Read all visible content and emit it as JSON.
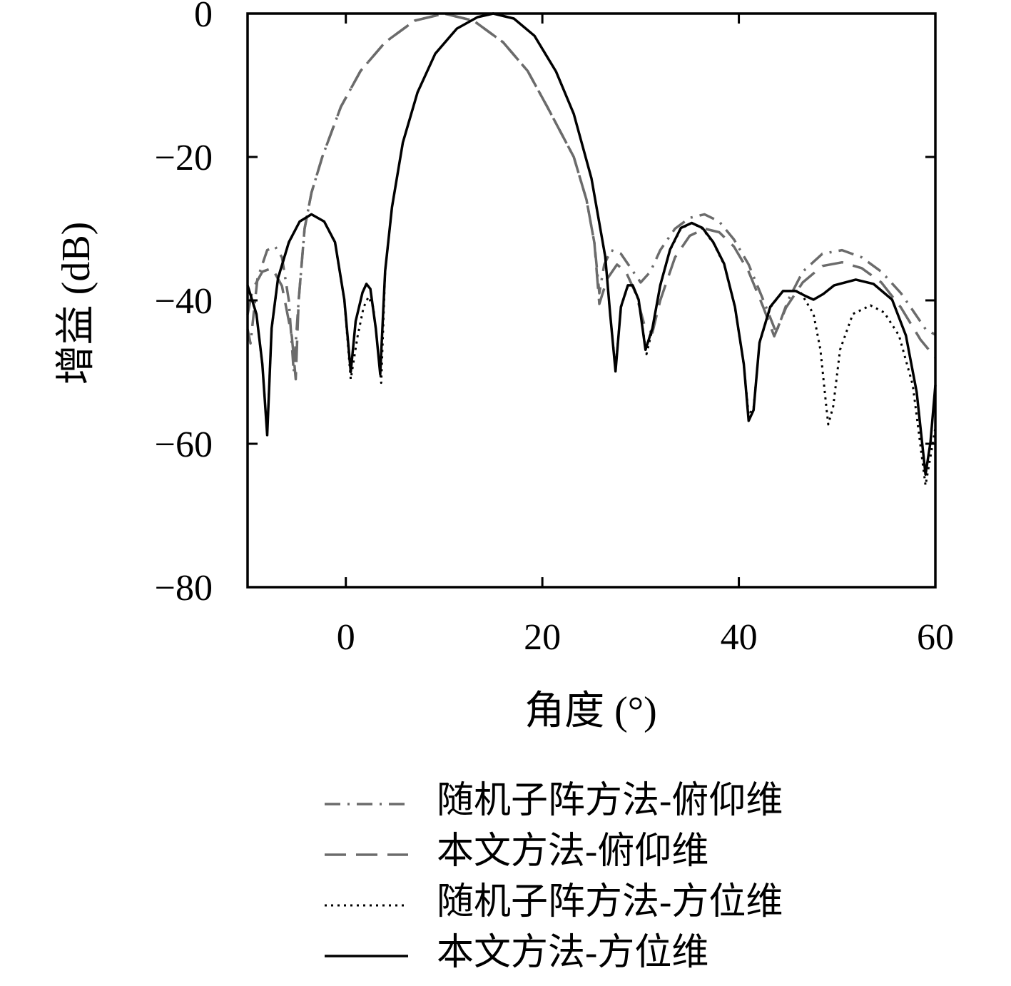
{
  "chart_data": {
    "type": "line",
    "x_label": "角度 (°)",
    "y_label": "增益 (dB)",
    "xlim": [
      -10,
      60
    ],
    "ylim": [
      -80,
      0
    ],
    "xticks": [
      0,
      20,
      40,
      60
    ],
    "yticks": [
      {
        "value": -80,
        "label": "−80"
      },
      {
        "value": -60,
        "label": "−60"
      },
      {
        "value": -40,
        "label": "−40"
      },
      {
        "value": -20,
        "label": "−20"
      },
      0
    ],
    "grid": false,
    "legend": "bottom",
    "series": [
      {
        "name": "随机子阵方法-俯仰维",
        "color": "#6b6b6b",
        "dash": "dashdot",
        "x": [
          -10,
          -9.7,
          -9,
          -8,
          -7.2,
          -6.5,
          -5.8,
          -5.3,
          -4.8,
          -4.2,
          -3.5,
          -2.4,
          -0.5,
          1.5,
          4,
          7,
          10,
          13,
          16,
          18.5,
          20.5,
          23.2,
          24.5,
          25.3,
          25.8,
          26.3,
          27,
          28,
          29,
          30,
          31,
          32,
          33.5,
          35,
          36.5,
          38,
          39.5,
          41,
          42.5,
          43.8,
          45,
          46.5,
          48.5,
          50.5,
          52.5,
          54.5,
          56.5,
          58,
          59,
          60
        ],
        "values": [
          -44,
          -46,
          -37,
          -33,
          -32.5,
          -34,
          -40,
          -50,
          -40,
          -30,
          -25,
          -20,
          -13,
          -8,
          -4,
          -1,
          0,
          -1,
          -4,
          -8,
          -13,
          -20,
          -26,
          -32,
          -39,
          -35,
          -33,
          -33.5,
          -35.5,
          -37.5,
          -36,
          -33,
          -30,
          -28.5,
          -28,
          -29,
          -31.5,
          -35,
          -40,
          -44.5,
          -40,
          -36,
          -33.5,
          -33,
          -34,
          -36,
          -39,
          -42,
          -44,
          -44.8
        ]
      },
      {
        "name": "本文方法-俯仰维",
        "color": "#6b6b6b",
        "dash": "dashed",
        "x": [
          -10,
          -9.5,
          -8.5,
          -7.5,
          -6.5,
          -5.5,
          -5.1,
          -4.8,
          -4.2,
          -3.5,
          -2.4,
          -0.5,
          1.5,
          4,
          7,
          10,
          13,
          16,
          18.5,
          20.5,
          23.2,
          24.5,
          25.3,
          25.8,
          26.6,
          27.6,
          28.5,
          29.5,
          30.5,
          31.2,
          32,
          33.5,
          35,
          36.5,
          38,
          39.5,
          41,
          42.5,
          43.6,
          44.8,
          46.5,
          48.5,
          50.5,
          52.5,
          54.5,
          56.5,
          58.5,
          60
        ],
        "values": [
          -42,
          -38.5,
          -36,
          -35.5,
          -38,
          -45,
          -51,
          -40,
          -30,
          -25,
          -20,
          -13,
          -8,
          -4,
          -1,
          0,
          -1,
          -4,
          -8,
          -13,
          -20,
          -26,
          -32,
          -40.5,
          -37,
          -35,
          -36,
          -39,
          -44,
          -44.5,
          -40,
          -34,
          -31,
          -30,
          -30.5,
          -32.5,
          -36,
          -41,
          -45,
          -41,
          -37.5,
          -35.2,
          -34.7,
          -35.5,
          -37.5,
          -41,
          -45.5,
          -48
        ]
      },
      {
        "name": "随机子阵方法-方位维",
        "color": "#000000",
        "dash": "dotted",
        "x": [
          -10,
          -9.1,
          -8.5,
          -8,
          -7.55,
          -6.9,
          -5.8,
          -4.7,
          -3.5,
          -2.2,
          -1.1,
          -0.15,
          0.5,
          1.2,
          1.8,
          2.3,
          2.8,
          3.2,
          3.6,
          4.0,
          4.7,
          5.8,
          7.3,
          9.1,
          11.3,
          13.4,
          15,
          17.1,
          19.2,
          21.4,
          23.2,
          25,
          26.4,
          26.9,
          27.45,
          28,
          28.7,
          29.2,
          29.8,
          30.6,
          31.2,
          32,
          33,
          34.1,
          35.2,
          36.3,
          37.4,
          38.5,
          39.6,
          40.5,
          41,
          41.5,
          42.1,
          43.2,
          44.5,
          46.2,
          47.6,
          48.3,
          48.9,
          49.1,
          49.6,
          50.3,
          51.6,
          53.4,
          54.8,
          56.3,
          57.7,
          59,
          60
        ],
        "values": [
          -38,
          -42,
          -49,
          -58.5,
          -44,
          -37,
          -32,
          -29,
          -28,
          -29,
          -32,
          -40,
          -51,
          -45,
          -41,
          -39.5,
          -41,
          -46,
          -51.5,
          -36,
          -27,
          -18,
          -11,
          -5.6,
          -2.1,
          -0.5,
          0,
          -0.7,
          -3.1,
          -8.1,
          -14,
          -23,
          -34,
          -42,
          -49.5,
          -41,
          -38,
          -38,
          -40,
          -47.5,
          -44,
          -38,
          -33,
          -30,
          -29.2,
          -30,
          -32,
          -35,
          -41,
          -49,
          -56,
          -55,
          -46,
          -41,
          -38.7,
          -38.7,
          -41.9,
          -46.9,
          -54.8,
          -57.3,
          -54.8,
          -46.9,
          -41.9,
          -40.7,
          -41.7,
          -44.9,
          -51.8,
          -65.8,
          -57.8
        ]
      },
      {
        "name": "本文方法-方位维",
        "color": "#000000",
        "dash": "solid",
        "x": [
          -10,
          -9.1,
          -8.5,
          -8,
          -7.55,
          -6.9,
          -5.8,
          -4.7,
          -3.5,
          -2.2,
          -1.1,
          -0.15,
          0.5,
          1.0,
          1.7,
          2.1,
          2.5,
          3.05,
          3.5,
          4.0,
          4.7,
          5.8,
          7.3,
          9.1,
          11.3,
          13.4,
          15,
          17.1,
          19.2,
          21.4,
          23.2,
          25,
          26.4,
          26.9,
          27.45,
          28,
          28.7,
          29.2,
          29.8,
          30.5,
          31.2,
          32,
          33,
          34.1,
          35.2,
          36.3,
          37.4,
          38.5,
          39.6,
          40.5,
          41,
          41.5,
          42.1,
          43.2,
          44.5,
          45.8,
          46.8,
          47.6,
          48.6,
          49.7,
          51.9,
          53.7,
          55.6,
          57,
          58.1,
          59,
          59.5,
          60
        ],
        "values": [
          -37.9,
          -41.9,
          -48.9,
          -58.8,
          -43.9,
          -36.9,
          -31.9,
          -29,
          -28,
          -29,
          -31.9,
          -39.9,
          -50,
          -42.9,
          -38.9,
          -37.7,
          -38.4,
          -43.9,
          -50.3,
          -35.9,
          -27,
          -18,
          -11,
          -5.6,
          -2.1,
          -0.5,
          0,
          -0.7,
          -3.1,
          -8.1,
          -14,
          -23,
          -33.9,
          -41.9,
          -49.9,
          -40.9,
          -37.9,
          -37.9,
          -39.9,
          -46.9,
          -43.9,
          -37.9,
          -32.9,
          -29.9,
          -29.2,
          -29.9,
          -31.9,
          -34.9,
          -40.9,
          -48.9,
          -56.8,
          -55.3,
          -45.9,
          -40.9,
          -38.7,
          -38.7,
          -39.4,
          -39.9,
          -39.1,
          -37.9,
          -37.1,
          -37.7,
          -39.9,
          -44.9,
          -52.8,
          -64.3,
          -59.8,
          -51.8
        ]
      }
    ]
  }
}
